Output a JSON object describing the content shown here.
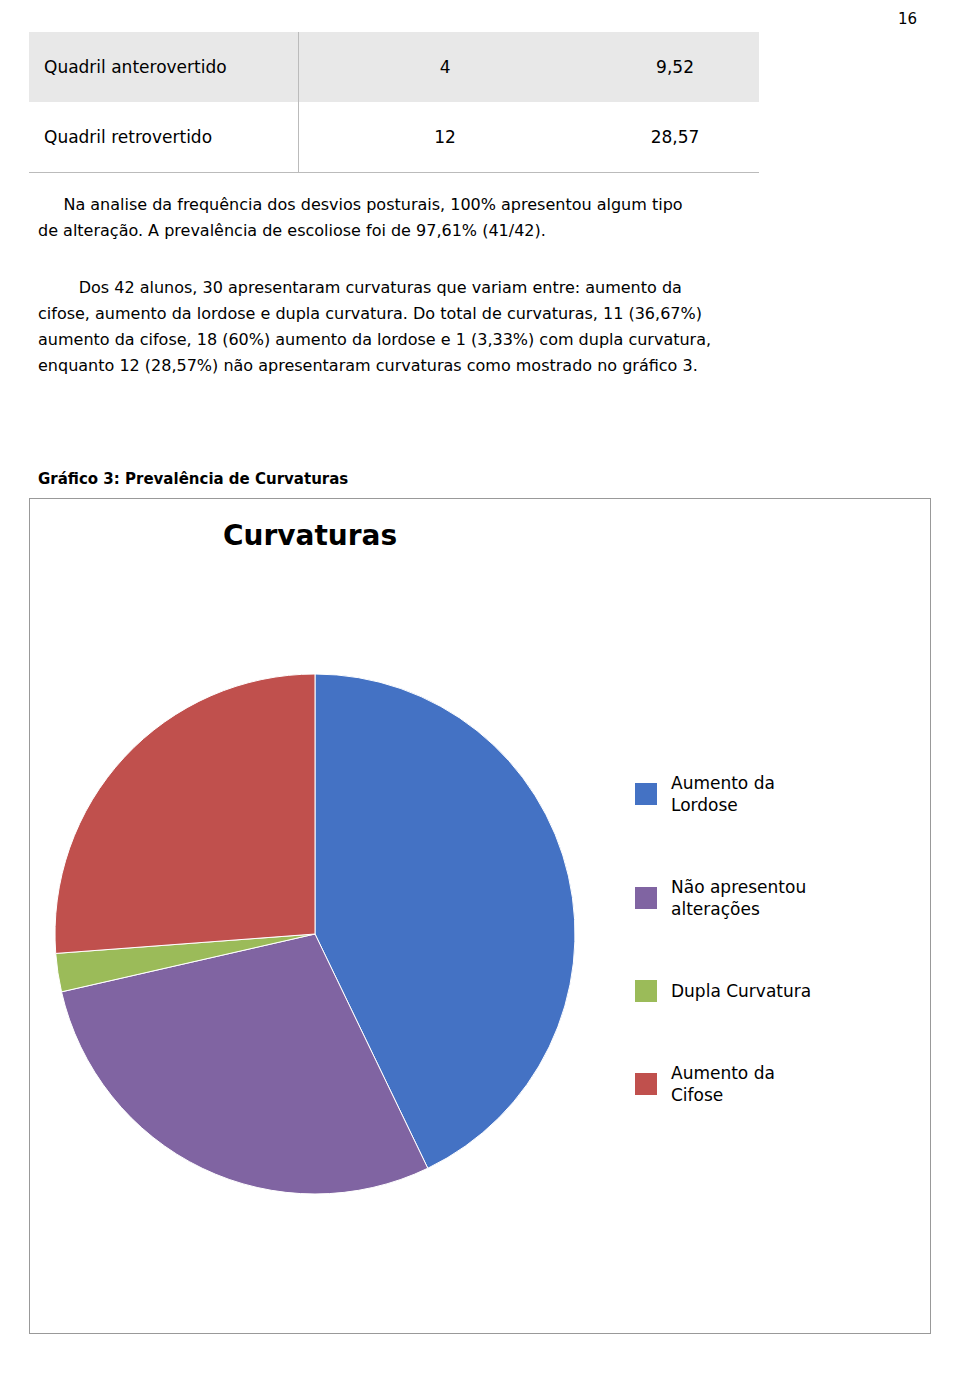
{
  "chart_data": {
    "type": "pie",
    "title": "Curvaturas",
    "subtitle": "Gráfico 3: Prevalência de Curvaturas",
    "categories": [
      "Aumento da\nLordose",
      "Não apresentou\nalterações",
      "Dupla Curvatura",
      "Aumento da\nCifose"
    ],
    "values": [
      18,
      12,
      1,
      11
    ],
    "colors": [
      "#4472C4",
      "#8064A2",
      "#9BBB59",
      "#C0504D"
    ],
    "legend": "right",
    "annotations": [
      "16",
      "Quadril anterovertido",
      "4",
      "9,52",
      "Quadril retrovertido",
      "12",
      "28,57",
      "     Na analise da frequência dos desvios posturais, 100% apresentou algum tipo",
      "de alteração. A prevalência de escoliose foi de 97,61% (41/42).",
      "        Dos 42 alunos, 30 apresentaram curvaturas que variam entre: aumento da",
      "cifose, aumento da lordose e dupla curvatura. Do total de curvaturas, 11 (36,67%)",
      "aumento da cifose, 18 (60%) aumento da lordose e 1 (3,33%) com dupla curvatura,",
      "enquanto 12 (28,57%) não apresentaram curvaturas como mostrado no gráfico 3."
    ]
  }
}
